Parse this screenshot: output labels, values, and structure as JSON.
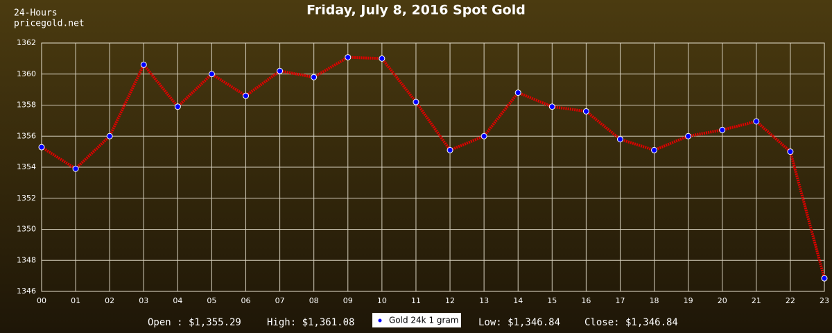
{
  "chart_data": {
    "type": "line",
    "title": "Friday, July 8, 2016 Spot Gold",
    "header": [
      "24-Hours",
      "pricegold.net"
    ],
    "categories": [
      "00",
      "01",
      "02",
      "03",
      "04",
      "05",
      "06",
      "07",
      "08",
      "09",
      "10",
      "11",
      "12",
      "13",
      "14",
      "15",
      "16",
      "17",
      "18",
      "19",
      "20",
      "21",
      "22",
      "23"
    ],
    "series": [
      {
        "name": "Gold 24k 1 gram",
        "color": "#e00000",
        "marker_color": "#0000ff",
        "values": [
          1355.29,
          1353.9,
          1356.0,
          1360.6,
          1357.9,
          1360.0,
          1358.6,
          1360.2,
          1359.8,
          1361.08,
          1361.0,
          1358.2,
          1355.1,
          1356.0,
          1358.8,
          1357.9,
          1357.6,
          1355.8,
          1355.1,
          1356.0,
          1356.4,
          1356.95,
          1355.0,
          1346.84
        ]
      }
    ],
    "ylim": [
      1346,
      1362
    ],
    "yticks": [
      1346,
      1348,
      1350,
      1352,
      1354,
      1356,
      1358,
      1360,
      1362
    ],
    "grid": true,
    "footer_left": [
      "Open : $1,355.29",
      "High: $1,361.08"
    ],
    "footer_right": [
      "Low: $1,346.84",
      "Close: $1,346.84"
    ]
  }
}
